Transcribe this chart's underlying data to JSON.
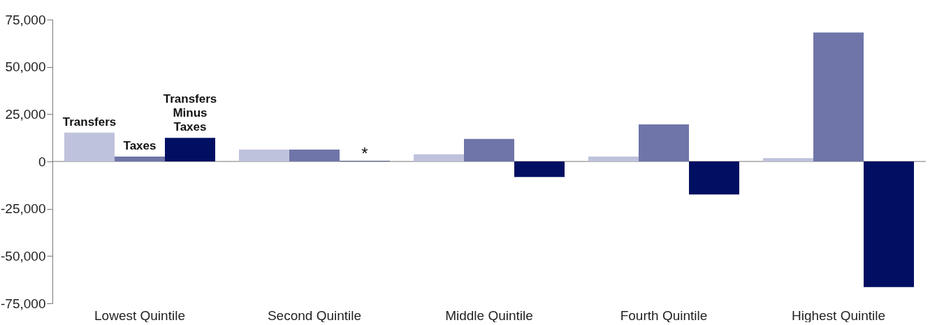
{
  "chart_data": {
    "type": "bar",
    "categories": [
      "Lowest Quintile",
      "Second Quintile",
      "Middle Quintile",
      "Fourth Quintile",
      "Highest Quintile"
    ],
    "series": [
      {
        "name": "Transfers",
        "color": "#bfc2dc",
        "values": [
          15200,
          6300,
          3800,
          2600,
          1800
        ]
      },
      {
        "name": "Taxes",
        "color": "#6f75a8",
        "values": [
          2600,
          6300,
          11900,
          19600,
          68200
        ]
      },
      {
        "name": "Transfers Minus Taxes",
        "color": "#000f61",
        "values": [
          12500,
          200,
          -8200,
          -17500,
          -66400
        ]
      }
    ],
    "ylim": [
      -75000,
      75000
    ],
    "yticks": [
      {
        "value": -75000,
        "label": "-75,000"
      },
      {
        "value": -50000,
        "label": "-50,000"
      },
      {
        "value": -25000,
        "label": "-25,000"
      },
      0,
      {
        "value": 25000,
        "label": "25,000"
      },
      {
        "value": 50000,
        "label": "50,000"
      },
      {
        "value": 75000,
        "label": "75,000"
      }
    ],
    "annotations": [
      "*"
    ],
    "legend": false
  }
}
